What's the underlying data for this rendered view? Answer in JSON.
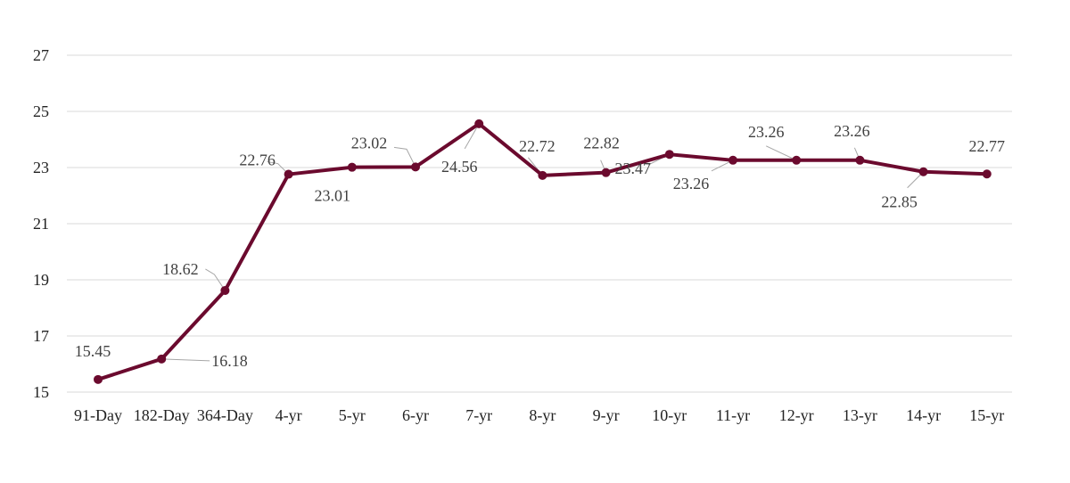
{
  "chart_data": {
    "type": "line",
    "categories": [
      "91-Day",
      "182-Day",
      "364-Day",
      "4-yr",
      "5-yr",
      "6-yr",
      "7-yr",
      "8-yr",
      "9-yr",
      "10-yr",
      "11-yr",
      "12-yr",
      "13-yr",
      "14-yr",
      "15-yr"
    ],
    "values": [
      15.45,
      16.18,
      18.62,
      22.76,
      23.01,
      23.02,
      24.56,
      22.72,
      22.82,
      23.47,
      23.26,
      23.26,
      23.26,
      22.85,
      22.77
    ],
    "data_labels": [
      "15.45",
      "16.18",
      "18.62",
      "22.76",
      "23.01",
      "23.02",
      "24.56",
      "22.72",
      "22.82",
      "23.47",
      "23.26",
      "23.26",
      "23.26",
      "22.85",
      "22.77"
    ],
    "y_ticks": [
      "15",
      "17",
      "19",
      "21",
      "23",
      "25",
      "27"
    ],
    "ylim": [
      15,
      27
    ],
    "grid": true,
    "line_color": "#6b0a2e",
    "title": "",
    "xlabel": "",
    "ylabel": ""
  }
}
